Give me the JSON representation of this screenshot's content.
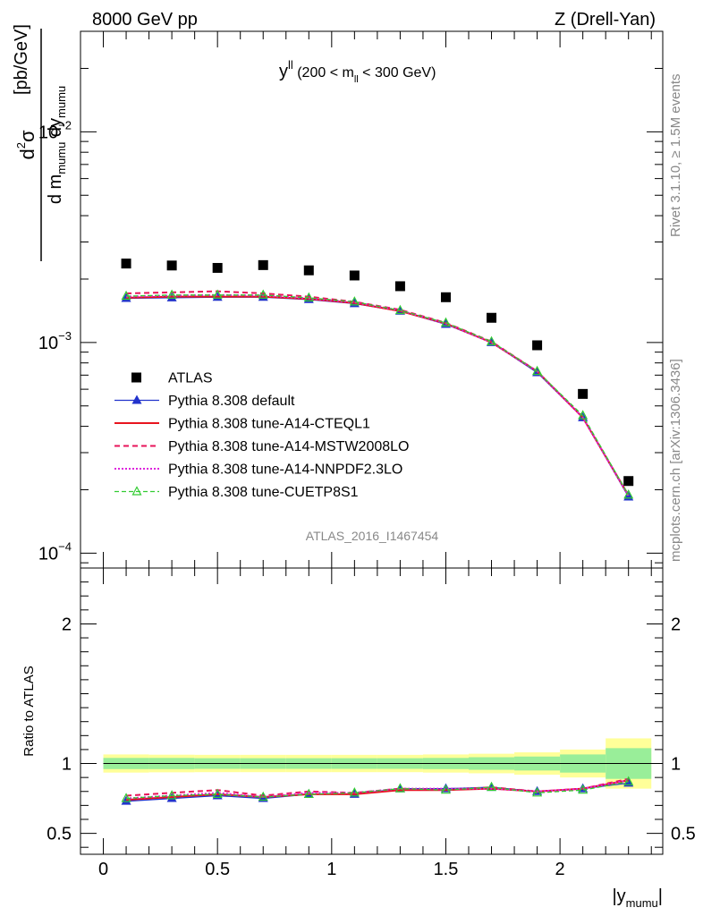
{
  "header": {
    "left": "8000 GeV pp",
    "right": "Z (Drell-Yan)"
  },
  "side_labels": {
    "rivet": "Rivet 3.1.10, ≥ 1.5M events",
    "mcplots": "mcplots.cern.ch [arXiv:1306.3436]"
  },
  "watermark": "ATLAS_2016_I1467454",
  "chart_data": [
    {
      "type": "scatter",
      "title_main": "y",
      "title_sup": "ll",
      "title_range": " (200 < m",
      "title_sub": "ll",
      "title_range_end": " < 300 GeV)",
      "ylabel": {
        "num_d": "d",
        "num_sup": "2",
        "num_sigma": "σ",
        "den_dm": "d m",
        "den_sub1": "mumu",
        "den_dy": " dy",
        "den_sub2": "mumu",
        "unit": "[pb/GeV]"
      },
      "yscale": "log",
      "ylim": [
        8.5e-05,
        0.03
      ],
      "xlim": [
        -0.1,
        2.45
      ],
      "yticks": [
        {
          "base": "10",
          "exp": "−4",
          "value": 0.0001
        },
        {
          "base": "10",
          "exp": "−3",
          "value": 0.001
        },
        {
          "base": "10",
          "exp": "−2",
          "value": 0.01
        }
      ],
      "x": [
        0.1,
        0.3,
        0.5,
        0.7,
        0.9,
        1.1,
        1.3,
        1.5,
        1.7,
        1.9,
        2.1,
        2.3
      ],
      "legend_placement": "lower-left",
      "series": [
        {
          "name": "ATLAS",
          "color": "#000000",
          "style": "data",
          "values": [
            0.00237,
            0.00232,
            0.00226,
            0.00233,
            0.0022,
            0.00208,
            0.00185,
            0.00164,
            0.00131,
            0.00097,
            0.00057,
            0.00022
          ]
        },
        {
          "name": "Pythia 8.308 default",
          "color": "#2233cc",
          "style": "default",
          "values": [
            0.00162,
            0.00163,
            0.00164,
            0.00164,
            0.0016,
            0.00153,
            0.00141,
            0.00122,
            0.001,
            0.00072,
            0.00044,
            0.000185
          ]
        },
        {
          "name": "Pythia 8.308 tune-A14-CTEQL1",
          "color": "#e8141e",
          "style": "solid",
          "values": [
            0.00163,
            0.00165,
            0.00165,
            0.00165,
            0.00161,
            0.00154,
            0.00141,
            0.00123,
            0.001,
            0.00073,
            0.00044,
            0.000188
          ]
        },
        {
          "name": "Pythia 8.308 tune-A14-MSTW2008LO",
          "color": "#e8145a",
          "style": "dashed",
          "values": [
            0.00171,
            0.00173,
            0.00175,
            0.00171,
            0.00165,
            0.00156,
            0.00143,
            0.00124,
            0.00101,
            0.00073,
            0.00044,
            0.000188
          ]
        },
        {
          "name": "Pythia 8.308 tune-A14-NNPDF2.3LO",
          "color": "#dd22dd",
          "style": "dotted",
          "values": [
            0.00165,
            0.00167,
            0.00168,
            0.00167,
            0.00162,
            0.00155,
            0.00142,
            0.00123,
            0.001,
            0.00073,
            0.00044,
            0.000187
          ]
        },
        {
          "name": "Pythia 8.308 tune-CUETP8S1",
          "color": "#33cc33",
          "style": "dashtri",
          "values": [
            0.00166,
            0.00168,
            0.00168,
            0.00168,
            0.00163,
            0.00156,
            0.00142,
            0.00124,
            0.00101,
            0.00073,
            0.00045,
            0.000189
          ]
        }
      ]
    },
    {
      "type": "scatter",
      "ylabel": "Ratio to ATLAS",
      "xlabel_main": "|y",
      "xlabel_sub": "mumu",
      "xlabel_end": "|",
      "ylim": [
        0.35,
        2.4
      ],
      "xlim": [
        -0.1,
        2.45
      ],
      "yticks": [
        {
          "label": "0.5",
          "value": 0.5
        },
        {
          "label": "1",
          "value": 1
        },
        {
          "label": "2",
          "value": 2
        }
      ],
      "xticks": [
        {
          "label": "0",
          "value": 0
        },
        {
          "label": "0.5",
          "value": 0.5
        },
        {
          "label": "1",
          "value": 1
        },
        {
          "label": "1.5",
          "value": 1.5
        },
        {
          "label": "2",
          "value": 2
        }
      ],
      "bins": [
        0,
        0.2,
        0.4,
        0.6,
        0.8,
        1.0,
        1.2,
        1.4,
        1.6,
        1.8,
        2.0,
        2.2,
        2.4
      ],
      "band_yellow": [
        0.065,
        0.063,
        0.062,
        0.062,
        0.062,
        0.062,
        0.062,
        0.065,
        0.07,
        0.08,
        0.1,
        0.18
      ],
      "band_green": [
        0.04,
        0.04,
        0.038,
        0.038,
        0.038,
        0.038,
        0.038,
        0.04,
        0.045,
        0.05,
        0.065,
        0.11
      ],
      "band_colors": {
        "yellow": "#ffff99",
        "green": "#99ee99"
      },
      "x": [
        0.1,
        0.3,
        0.5,
        0.7,
        0.9,
        1.1,
        1.3,
        1.5,
        1.7,
        1.9,
        2.1,
        2.3
      ],
      "series": [
        {
          "name": "Pythia 8.308 default",
          "color": "#2233cc",
          "style": "default",
          "values": [
            0.73,
            0.75,
            0.77,
            0.75,
            0.78,
            0.78,
            0.82,
            0.82,
            0.83,
            0.8,
            0.82,
            0.86
          ]
        },
        {
          "name": "Pythia 8.308 tune-A14-CTEQL1",
          "color": "#e8141e",
          "style": "solid",
          "values": [
            0.74,
            0.76,
            0.78,
            0.76,
            0.78,
            0.78,
            0.81,
            0.81,
            0.82,
            0.8,
            0.82,
            0.88
          ]
        },
        {
          "name": "Pythia 8.308 tune-A14-MSTW2008LO",
          "color": "#e8145a",
          "style": "dashed",
          "values": [
            0.77,
            0.79,
            0.81,
            0.77,
            0.8,
            0.79,
            0.82,
            0.81,
            0.83,
            0.8,
            0.82,
            0.89
          ]
        },
        {
          "name": "Pythia 8.308 tune-A14-NNPDF2.3LO",
          "color": "#dd22dd",
          "style": "dotted",
          "values": [
            0.75,
            0.77,
            0.79,
            0.76,
            0.79,
            0.79,
            0.82,
            0.82,
            0.82,
            0.8,
            0.82,
            0.88
          ]
        },
        {
          "name": "Pythia 8.308 tune-CUETP8S1",
          "color": "#33cc33",
          "style": "dashtri",
          "values": [
            0.75,
            0.77,
            0.78,
            0.76,
            0.78,
            0.79,
            0.82,
            0.81,
            0.83,
            0.79,
            0.81,
            0.87
          ]
        }
      ]
    }
  ]
}
